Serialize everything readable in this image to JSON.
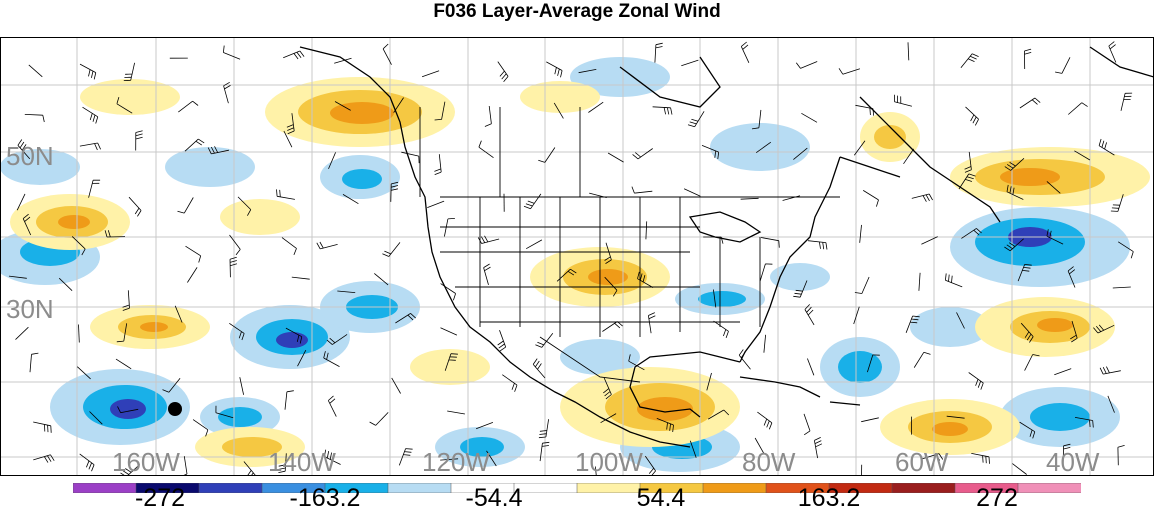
{
  "title": "F036 Layer-Average Zonal Wind",
  "lat_labels": [
    "50N",
    "30N"
  ],
  "lon_labels": [
    "160W",
    "140W",
    "120W",
    "100W",
    "80W",
    "60W",
    "40W"
  ],
  "colorbar": {
    "colors": [
      "#9b3fc6",
      "#0a0a6e",
      "#2f3fb8",
      "#3a8fe0",
      "#19b0e8",
      "#b7dcf3",
      "#ffffff",
      "#ffffff",
      "#fff2a8",
      "#f5c842",
      "#ef9b18",
      "#e0521a",
      "#c22a12",
      "#9a1e1e",
      "#e85c8c",
      "#f090b8"
    ],
    "labels": [
      "-272",
      "-163.2",
      "-54.4",
      "54.4",
      "163.2",
      "272"
    ]
  }
}
